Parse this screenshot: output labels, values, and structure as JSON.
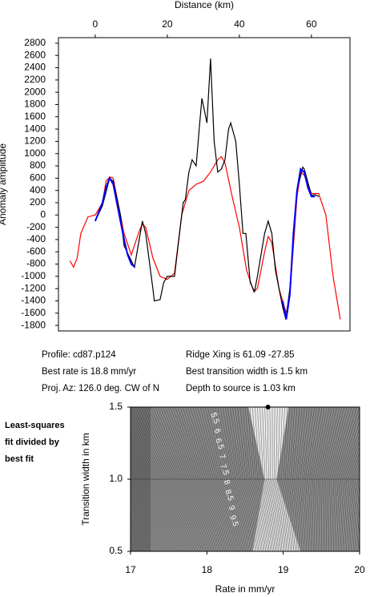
{
  "chart_data": [
    {
      "type": "line",
      "x_label": "Distance (km)",
      "y_label": "Anomaly amplitude",
      "xlim": [
        -10.2,
        70.7
      ],
      "ylim": [
        -1890,
        2890
      ],
      "xticks": [
        0,
        20,
        40,
        60
      ],
      "yticks": [
        2800,
        2600,
        2400,
        2200,
        2000,
        1800,
        1600,
        1400,
        1200,
        1000,
        800,
        600,
        400,
        200,
        0,
        -200,
        -400,
        -600,
        -800,
        -1000,
        -1200,
        -1400,
        -1600,
        -1800
      ],
      "series": [
        {
          "color": "#ff0000",
          "x": [
            -7,
            -6,
            -5,
            -4,
            -2,
            0,
            2,
            3,
            4,
            5,
            6,
            8,
            10,
            12,
            13,
            14,
            16,
            18,
            20,
            22,
            24,
            26,
            28,
            30,
            32,
            34,
            35,
            36,
            38,
            40,
            42,
            44,
            45,
            47,
            48,
            49,
            51,
            53,
            54,
            56,
            57,
            58,
            60,
            62,
            64,
            66,
            68
          ],
          "values": [
            -750,
            -850,
            -700,
            -300,
            -30,
            0,
            200,
            550,
            620,
            600,
            300,
            -300,
            -650,
            -300,
            -150,
            -200,
            -700,
            -1000,
            -1050,
            -950,
            0,
            400,
            500,
            550,
            700,
            900,
            950,
            850,
            300,
            -200,
            -900,
            -1250,
            -1200,
            -600,
            -350,
            -450,
            -1200,
            -1600,
            -1300,
            300,
            700,
            650,
            350,
            350,
            0,
            -1000,
            -1700
          ]
        },
        {
          "color": "#000000",
          "x": [
            0,
            2,
            4,
            5,
            7,
            8,
            10.9,
            13.1,
            14,
            16,
            16.4,
            18,
            19,
            20,
            22,
            24.4,
            25,
            26,
            26.9,
            28,
            29,
            29.6,
            31,
            32,
            33,
            34,
            35,
            36,
            37,
            37.6,
            39,
            40,
            41,
            41.8,
            43,
            44.2,
            45,
            47,
            48,
            49,
            50,
            52,
            52.9,
            54,
            56,
            57.6,
            58,
            60,
            61,
            62
          ],
          "values": [
            -100,
            150,
            600,
            550,
            0,
            -500,
            -850,
            -100,
            -300,
            -1200,
            -1400,
            -1380,
            -1100,
            -1000,
            -1000,
            200,
            250,
            700,
            900,
            800,
            1500,
            1900,
            1500,
            2550,
            1200,
            700,
            750,
            900,
            1400,
            1500,
            1200,
            500,
            -300,
            -300,
            -1100,
            -1250,
            -1000,
            -300,
            -100,
            -300,
            -900,
            -1500,
            -1700,
            -1200,
            400,
            780,
            750,
            320,
            330,
            300
          ]
        },
        {
          "color": "#0000ff",
          "x": [
            0,
            1,
            2,
            3,
            4,
            5,
            6,
            7,
            8,
            9,
            10,
            11,
            11.5,
            52,
            53,
            54,
            55,
            56,
            57,
            58,
            59,
            60,
            61
          ],
          "values": [
            -100,
            50,
            200,
            450,
            600,
            500,
            200,
            -100,
            -400,
            -650,
            -800,
            -850,
            null,
            -1400,
            -1700,
            -1300,
            -300,
            400,
            750,
            700,
            450,
            300,
            300
          ]
        }
      ]
    },
    {
      "type": "contour",
      "x_label": "Rate in mm/yr",
      "y_label": "Transition width in km",
      "xlim": [
        17,
        20
      ],
      "ylim": [
        0.5,
        1.5
      ],
      "xticks": [
        17,
        18,
        19,
        20
      ],
      "yticks": [
        0.5,
        {
          "value": 1,
          "label": "1.0"
        },
        1.5
      ],
      "contour_levels": [
        5.5,
        6,
        6.5,
        7,
        7.5,
        8,
        8.5,
        9,
        9.5
      ],
      "best_point": {
        "x": 18.8,
        "y": 1.5
      },
      "note": [
        "Least-squares",
        "fit divided by",
        "best fit"
      ]
    }
  ],
  "info": {
    "left": [
      "Profile: cd87.p124",
      "Best rate is 18.8 mm/yr",
      "Proj. Az: 126.0 deg. CW of N"
    ],
    "right": [
      "Ridge Xing is 61.09 -27.85",
      "Best transition width is 1.5 km",
      "Depth to source is    1.03 km"
    ]
  }
}
